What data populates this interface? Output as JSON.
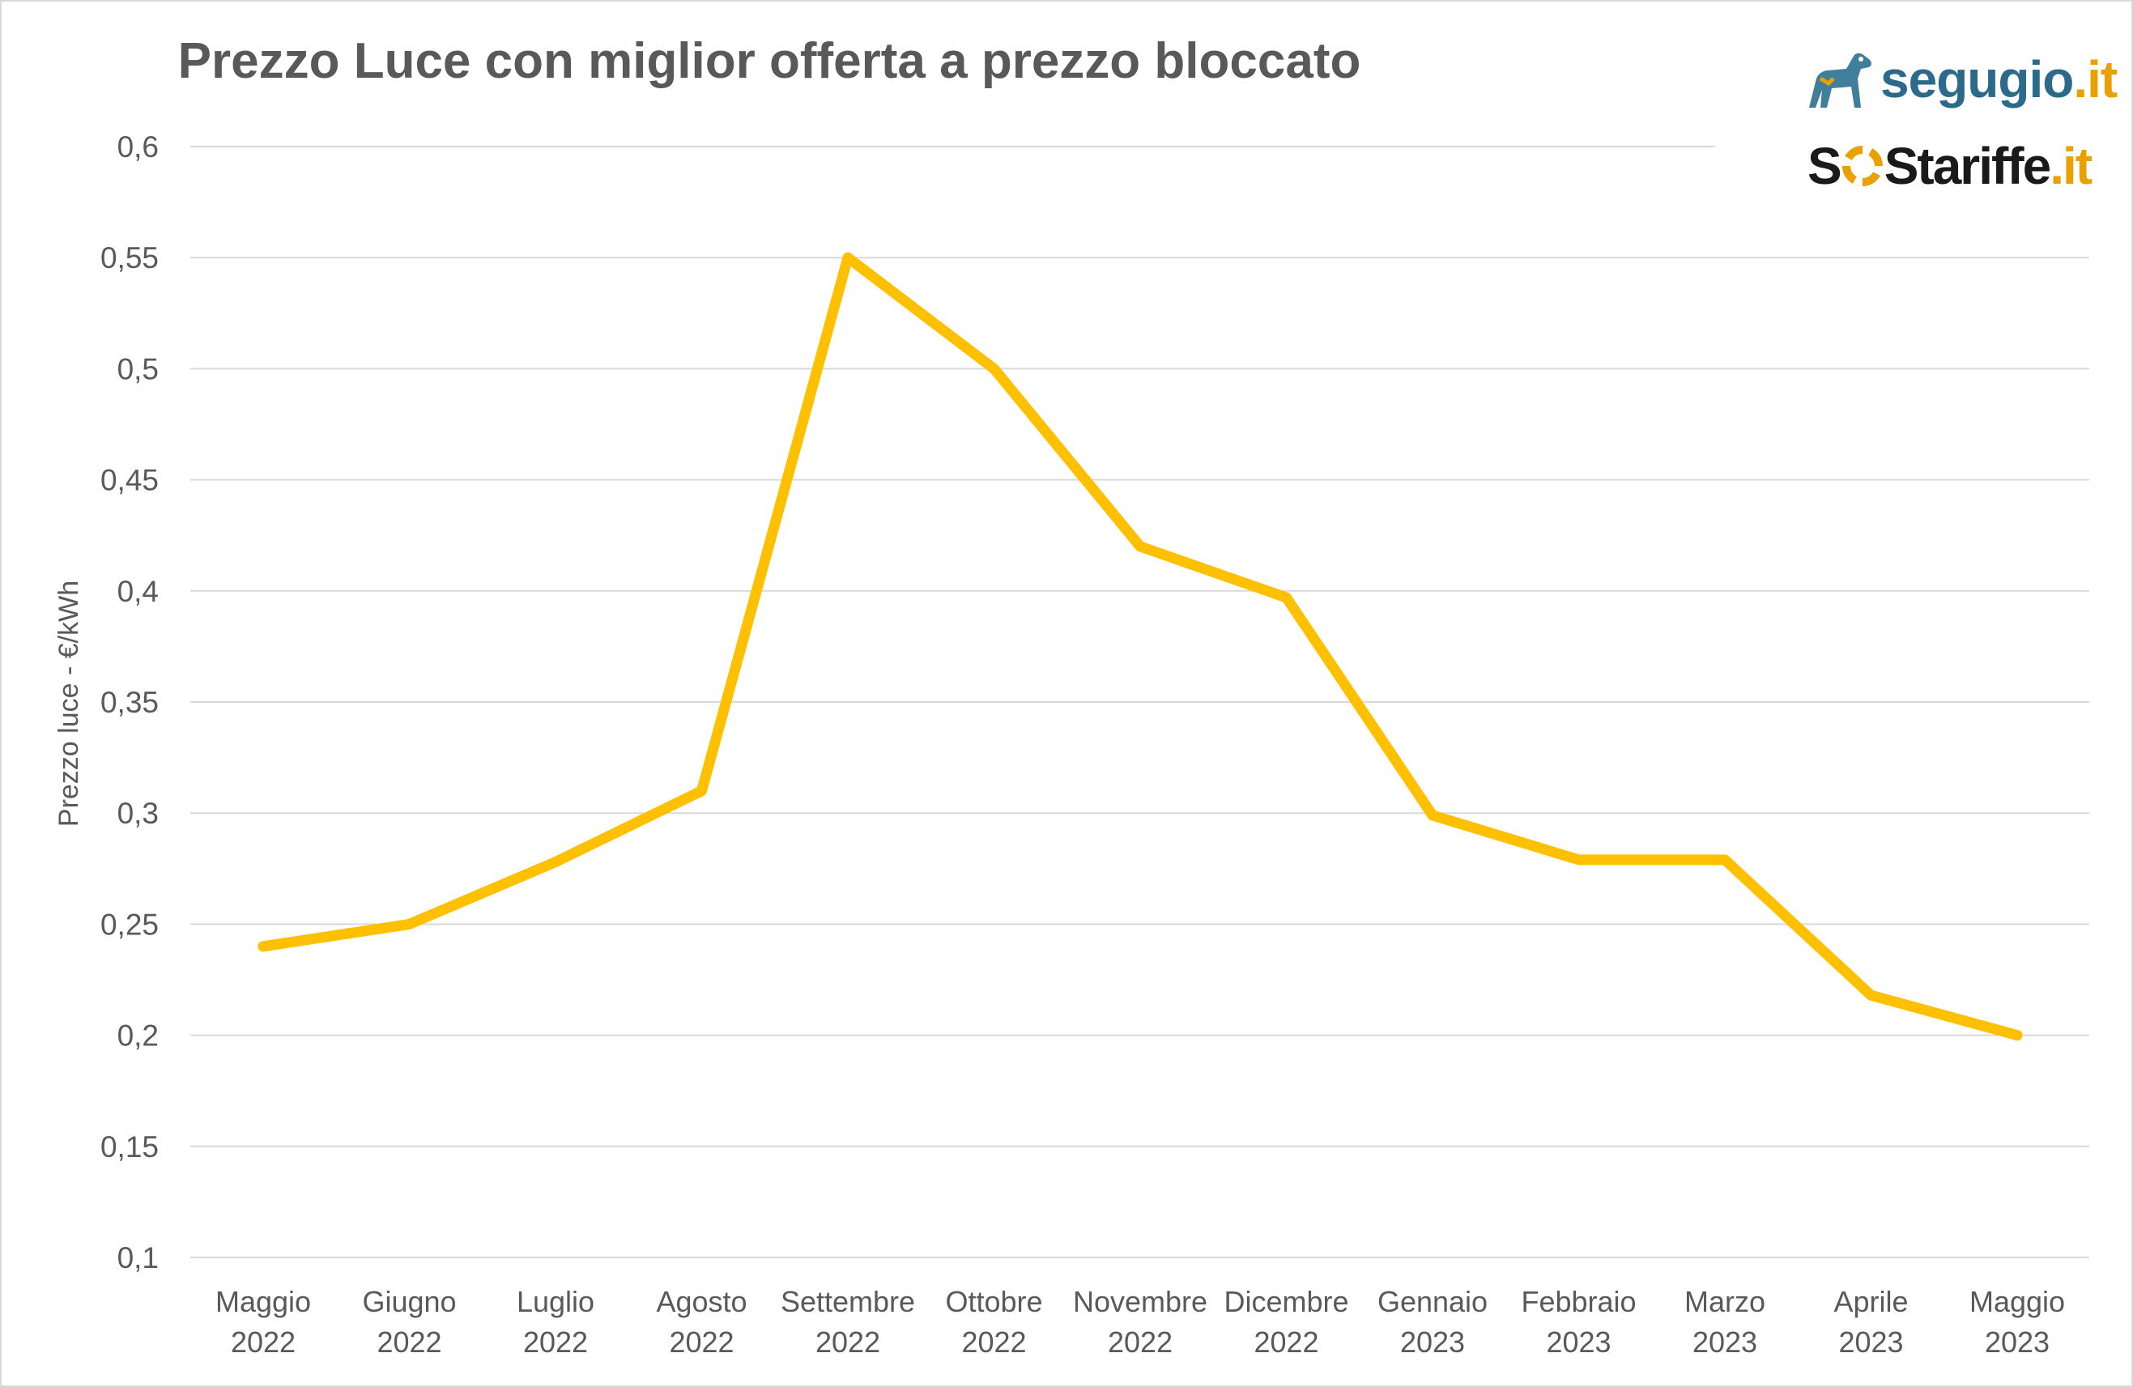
{
  "chart_data": {
    "type": "line",
    "title": "Prezzo Luce con miglior offerta a prezzo bloccato",
    "xlabel": "",
    "ylabel": "Prezzo luce - €/kWh",
    "ylim": [
      0.1,
      0.6
    ],
    "yticks": [
      "0,1",
      "0,15",
      "0,2",
      "0,25",
      "0,3",
      "0,35",
      "0,4",
      "0,45",
      "0,5",
      "0,55",
      "0,6"
    ],
    "ytick_values": [
      0.1,
      0.15,
      0.2,
      0.25,
      0.3,
      0.35,
      0.4,
      0.45,
      0.5,
      0.55,
      0.6
    ],
    "categories": [
      [
        "Maggio",
        "2022"
      ],
      [
        "Giugno",
        "2022"
      ],
      [
        "Luglio",
        "2022"
      ],
      [
        "Agosto",
        "2022"
      ],
      [
        "Settembre",
        "2022"
      ],
      [
        "Ottobre",
        "2022"
      ],
      [
        "Novembre",
        "2022"
      ],
      [
        "Dicembre",
        "2022"
      ],
      [
        "Gennaio",
        "2023"
      ],
      [
        "Febbraio",
        "2023"
      ],
      [
        "Marzo",
        "2023"
      ],
      [
        "Aprile",
        "2023"
      ],
      [
        "Maggio",
        "2023"
      ]
    ],
    "series": [
      {
        "values": [
          0.24,
          0.25,
          0.278,
          0.31,
          0.55,
          0.5,
          0.42,
          0.397,
          0.299,
          0.279,
          0.279,
          0.218,
          0.2
        ],
        "color": "#ffc000"
      }
    ],
    "grid": true,
    "legend": "none"
  },
  "logos": {
    "segugio_name": "segugio",
    "segugio_tld": ".it",
    "sos_name_1": "S",
    "sos_name_2": "Stariffe",
    "sos_tld": ".it"
  },
  "colors": {
    "line": "#ffc000",
    "grid": "#d9d9d9",
    "text": "#595959",
    "segugio_blue": "#2b6a8a",
    "accent_orange": "#e8a100"
  }
}
